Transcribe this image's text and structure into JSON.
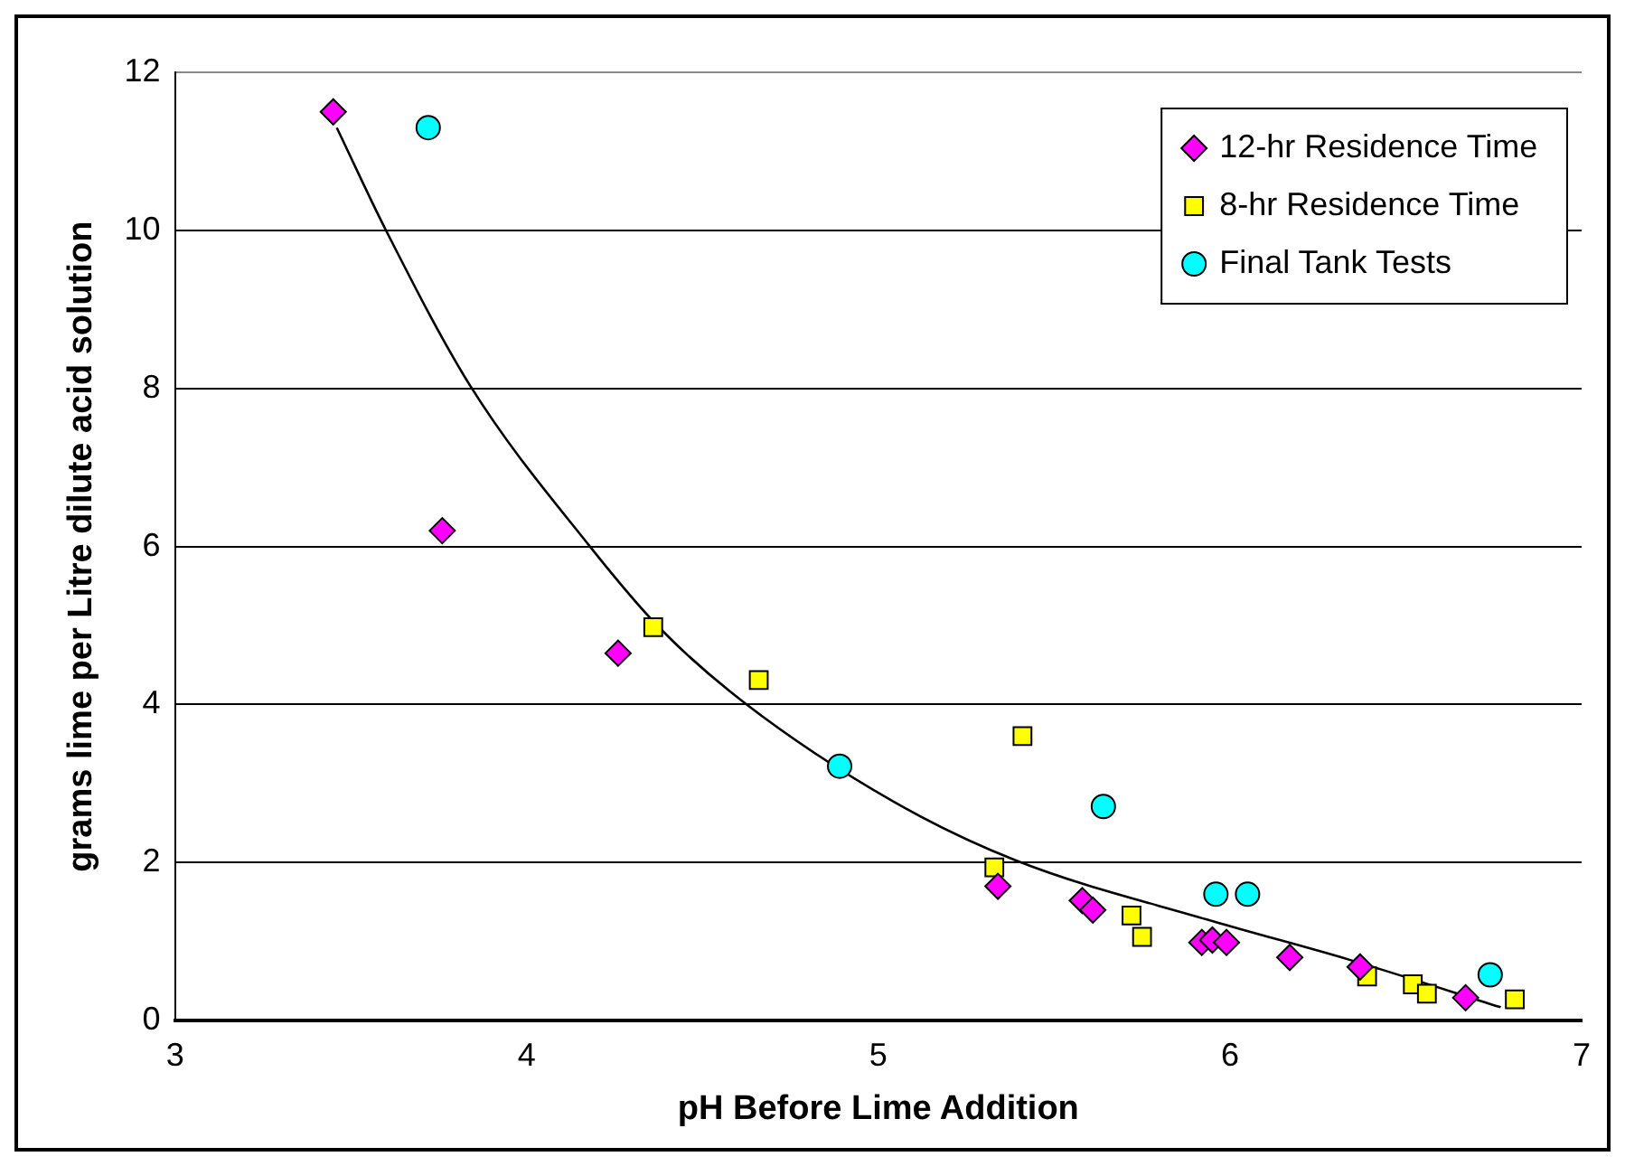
{
  "chart_data": {
    "type": "scatter",
    "xlabel": "pH Before Lime Addition",
    "ylabel": "grams lime per Litre dilute acid solution",
    "xlim": [
      3,
      7
    ],
    "xticks": [
      3,
      4,
      5,
      6,
      7
    ],
    "ylim": [
      0,
      12
    ],
    "yticks": [
      0,
      2,
      4,
      6,
      8,
      10,
      12
    ],
    "grid": "y",
    "legend": "top right",
    "series": [
      {
        "name": "12-hr Residence Time",
        "color": "#ff00ff",
        "marker": "diamond",
        "x": [
          3.45,
          3.76,
          4.26,
          5.34,
          5.58,
          5.61,
          5.92,
          5.95,
          5.99,
          6.17,
          6.37,
          6.67
        ],
        "values": [
          11.5,
          6.2,
          4.65,
          1.7,
          1.52,
          1.4,
          0.99,
          1.02,
          0.99,
          0.8,
          0.68,
          0.29
        ]
      },
      {
        "name": "8-hr Residence Time",
        "color": "#ffff00",
        "marker": "square",
        "x": [
          4.36,
          4.66,
          5.41,
          5.33,
          5.72,
          5.75,
          6.39,
          6.52,
          6.56,
          6.81
        ],
        "values": [
          4.98,
          4.31,
          3.6,
          1.94,
          1.33,
          1.06,
          0.56,
          0.46,
          0.34,
          0.27
        ]
      },
      {
        "name": "Final Tank Tests",
        "color": "#00ffff",
        "marker": "circle",
        "x": [
          3.72,
          4.89,
          5.64,
          5.96,
          6.05,
          6.74
        ],
        "values": [
          11.3,
          3.22,
          2.71,
          1.6,
          1.6,
          0.58
        ]
      },
      {
        "type": "line",
        "color": "#000000",
        "marker": "none",
        "x": [
          3.46,
          3.6,
          3.84,
          4.18,
          4.38,
          4.62,
          5.04,
          5.39,
          5.95,
          6.34,
          6.77
        ],
        "values": [
          11.3,
          10.0,
          8.03,
          6.0,
          4.96,
          4.02,
          2.78,
          2.03,
          1.26,
          0.77,
          0.17
        ]
      }
    ]
  }
}
